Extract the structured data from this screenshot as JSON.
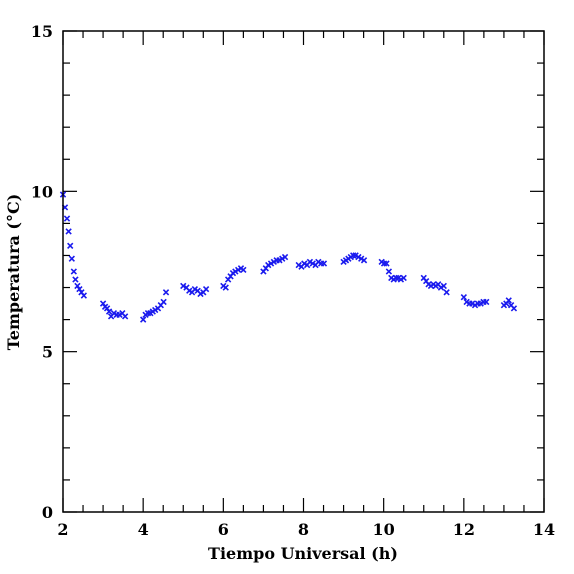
{
  "chart_data": {
    "type": "scatter",
    "title": "",
    "xlabel": "Tiempo Universal (h)",
    "ylabel": "Temperatura (°C)",
    "xlim": [
      2,
      14
    ],
    "ylim": [
      0,
      15
    ],
    "xticks": [
      "2",
      "4",
      "6",
      "8",
      "10",
      "12",
      "14"
    ],
    "yticks": [
      "0",
      "5",
      "10",
      "15"
    ],
    "grid": false,
    "marker": "x",
    "color": "#1a1aee",
    "series": [
      {
        "x": [
          2.0,
          2.05,
          2.1,
          2.14,
          2.18,
          2.22,
          2.27,
          2.31,
          2.36,
          2.41,
          2.46,
          2.52,
          3.0,
          3.05,
          3.1,
          3.15,
          3.2,
          3.27,
          3.34,
          3.41,
          3.48,
          3.55,
          4.0,
          4.06,
          4.12,
          4.18,
          4.24,
          4.3,
          4.37,
          4.44,
          4.51,
          4.57,
          5.0,
          5.08,
          5.15,
          5.22,
          5.29,
          5.36,
          5.43,
          5.5,
          5.57,
          6.0,
          6.06,
          6.12,
          6.18,
          6.24,
          6.3,
          6.37,
          6.44,
          6.5,
          7.0,
          7.06,
          7.12,
          7.19,
          7.26,
          7.33,
          7.4,
          7.47,
          7.54,
          7.88,
          7.95,
          8.02,
          8.09,
          8.16,
          8.23,
          8.3,
          8.37,
          8.44,
          8.51,
          9.0,
          9.06,
          9.12,
          9.18,
          9.24,
          9.3,
          9.37,
          9.44,
          9.51,
          9.95,
          10.01,
          10.07,
          10.13,
          10.19,
          10.25,
          10.31,
          10.37,
          10.43,
          10.5,
          11.0,
          11.06,
          11.12,
          11.18,
          11.24,
          11.3,
          11.36,
          11.43,
          11.5,
          11.57,
          12.0,
          12.07,
          12.14,
          12.21,
          12.28,
          12.35,
          12.42,
          12.49,
          12.56,
          13.0,
          13.06,
          13.12,
          13.18,
          13.25
        ],
        "y": [
          9.9,
          9.5,
          9.15,
          8.75,
          8.3,
          7.9,
          7.5,
          7.25,
          7.05,
          6.95,
          6.85,
          6.75,
          6.5,
          6.4,
          6.35,
          6.25,
          6.1,
          6.2,
          6.15,
          6.15,
          6.2,
          6.1,
          6.0,
          6.15,
          6.2,
          6.2,
          6.25,
          6.3,
          6.35,
          6.45,
          6.55,
          6.85,
          7.05,
          7.0,
          6.9,
          6.85,
          6.95,
          6.9,
          6.8,
          6.85,
          6.95,
          7.05,
          7.0,
          7.25,
          7.35,
          7.45,
          7.5,
          7.55,
          7.6,
          7.55,
          7.5,
          7.6,
          7.7,
          7.75,
          7.8,
          7.85,
          7.85,
          7.9,
          7.95,
          7.7,
          7.65,
          7.75,
          7.7,
          7.8,
          7.75,
          7.7,
          7.8,
          7.75,
          7.75,
          7.8,
          7.85,
          7.9,
          7.95,
          8.0,
          8.0,
          7.95,
          7.9,
          7.85,
          7.8,
          7.75,
          7.75,
          7.5,
          7.3,
          7.25,
          7.3,
          7.3,
          7.25,
          7.3,
          7.3,
          7.2,
          7.1,
          7.05,
          7.1,
          7.05,
          7.1,
          7.0,
          7.05,
          6.85,
          6.7,
          6.55,
          6.5,
          6.5,
          6.45,
          6.5,
          6.5,
          6.55,
          6.55,
          6.45,
          6.5,
          6.6,
          6.45,
          6.35
        ]
      }
    ]
  }
}
